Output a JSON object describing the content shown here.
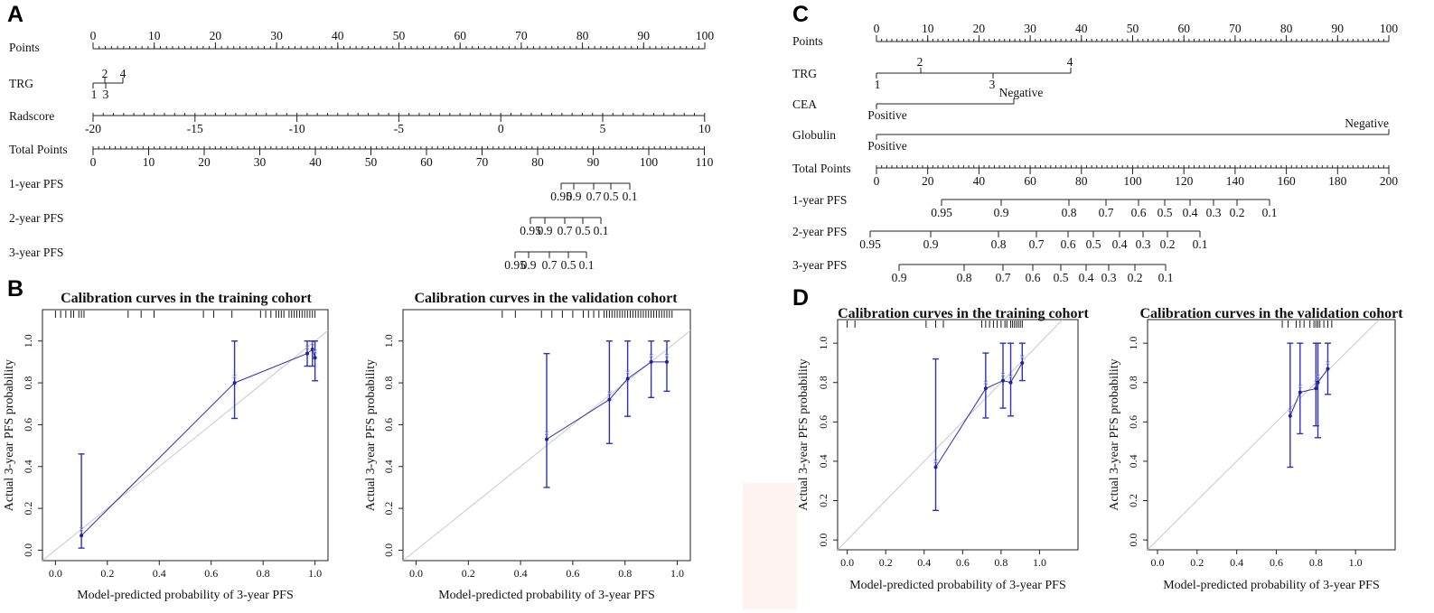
{
  "panels": {
    "A": {
      "letter": "A",
      "rows": [
        {
          "label": "Points",
          "ticks": [
            {
              "label": "0",
              "v": 0
            },
            {
              "label": "10",
              "v": 10
            },
            {
              "label": "20",
              "v": 20
            },
            {
              "label": "30",
              "v": 30
            },
            {
              "label": "40",
              "v": 40
            },
            {
              "label": "50",
              "v": 50
            },
            {
              "label": "60",
              "v": 60
            },
            {
              "label": "70",
              "v": 70
            },
            {
              "label": "80",
              "v": 80
            },
            {
              "label": "90",
              "v": 90
            },
            {
              "label": "100",
              "v": 100
            }
          ]
        },
        {
          "label": "TRG",
          "ticks": [
            {
              "label": "1",
              "v": 1
            },
            {
              "label": "2",
              "v": 2
            },
            {
              "label": "3",
              "v": 3
            },
            {
              "label": "4",
              "v": 4
            }
          ]
        },
        {
          "label": "Radscore",
          "ticks": [
            {
              "label": "-20",
              "v": -20
            },
            {
              "label": "-15",
              "v": -15
            },
            {
              "label": "-10",
              "v": -10
            },
            {
              "label": "-5",
              "v": -5
            },
            {
              "label": "0",
              "v": 0
            },
            {
              "label": "5",
              "v": 5
            },
            {
              "label": "10",
              "v": 10
            }
          ]
        },
        {
          "label": "Total Points",
          "ticks": [
            {
              "label": "0",
              "v": 0
            },
            {
              "label": "10",
              "v": 10
            },
            {
              "label": "20",
              "v": 20
            },
            {
              "label": "30",
              "v": 30
            },
            {
              "label": "40",
              "v": 40
            },
            {
              "label": "50",
              "v": 50
            },
            {
              "label": "60",
              "v": 60
            },
            {
              "label": "70",
              "v": 70
            },
            {
              "label": "80",
              "v": 80
            },
            {
              "label": "90",
              "v": 90
            },
            {
              "label": "100",
              "v": 100
            },
            {
              "label": "110",
              "v": 110
            }
          ]
        },
        {
          "label": "1-year PFS",
          "ticks": [
            {
              "label": "0.95"
            },
            {
              "label": "0.9"
            },
            {
              "label": "0.7"
            },
            {
              "label": "0.5"
            },
            {
              "label": "0.1"
            }
          ]
        },
        {
          "label": "2-year PFS",
          "ticks": [
            {
              "label": "0.95"
            },
            {
              "label": "0.9"
            },
            {
              "label": "0.7"
            },
            {
              "label": "0.5"
            },
            {
              "label": "0.1"
            }
          ]
        },
        {
          "label": "3-year PFS",
          "ticks": [
            {
              "label": "0.95"
            },
            {
              "label": "0.9"
            },
            {
              "label": "0.7"
            },
            {
              "label": "0.5"
            },
            {
              "label": "0.1"
            }
          ]
        }
      ]
    },
    "C": {
      "letter": "C",
      "rows": [
        {
          "label": "Points",
          "ticks": [
            {
              "label": "0",
              "v": 0
            },
            {
              "label": "10",
              "v": 10
            },
            {
              "label": "20",
              "v": 20
            },
            {
              "label": "30",
              "v": 30
            },
            {
              "label": "40",
              "v": 40
            },
            {
              "label": "50",
              "v": 50
            },
            {
              "label": "60",
              "v": 60
            },
            {
              "label": "70",
              "v": 70
            },
            {
              "label": "80",
              "v": 80
            },
            {
              "label": "90",
              "v": 90
            },
            {
              "label": "100",
              "v": 100
            }
          ]
        },
        {
          "label": "TRG",
          "ticks": [
            {
              "label": "1"
            },
            {
              "label": "2"
            },
            {
              "label": "3"
            },
            {
              "label": "4"
            }
          ]
        },
        {
          "label": "CEA",
          "ticks": [
            {
              "label": "Positive"
            },
            {
              "label": "Negative"
            }
          ]
        },
        {
          "label": "Globulin",
          "ticks": [
            {
              "label": "Positive"
            },
            {
              "label": "Negative"
            }
          ]
        },
        {
          "label": "Total Points",
          "ticks": [
            {
              "label": "0",
              "v": 0
            },
            {
              "label": "20",
              "v": 20
            },
            {
              "label": "40",
              "v": 40
            },
            {
              "label": "60",
              "v": 60
            },
            {
              "label": "80",
              "v": 80
            },
            {
              "label": "100",
              "v": 100
            },
            {
              "label": "120",
              "v": 120
            },
            {
              "label": "140",
              "v": 140
            },
            {
              "label": "160",
              "v": 160
            },
            {
              "label": "180",
              "v": 180
            },
            {
              "label": "200",
              "v": 200
            }
          ]
        },
        {
          "label": "1-year PFS",
          "ticks": [
            {
              "label": "0.95"
            },
            {
              "label": "0.9"
            },
            {
              "label": "0.8"
            },
            {
              "label": "0.7"
            },
            {
              "label": "0.6"
            },
            {
              "label": "0.5"
            },
            {
              "label": "0.4"
            },
            {
              "label": "0.3"
            },
            {
              "label": "0.2"
            },
            {
              "label": "0.1"
            }
          ]
        },
        {
          "label": "2-year PFS",
          "ticks": [
            {
              "label": "0.95"
            },
            {
              "label": "0.9"
            },
            {
              "label": "0.8"
            },
            {
              "label": "0.7"
            },
            {
              "label": "0.6"
            },
            {
              "label": "0.5"
            },
            {
              "label": "0.4"
            },
            {
              "label": "0.3"
            },
            {
              "label": "0.2"
            },
            {
              "label": "0.1"
            }
          ]
        },
        {
          "label": "3-year PFS",
          "ticks": [
            {
              "label": "0.9"
            },
            {
              "label": "0.8"
            },
            {
              "label": "0.7"
            },
            {
              "label": "0.6"
            },
            {
              "label": "0.5"
            },
            {
              "label": "0.4"
            },
            {
              "label": "0.3"
            },
            {
              "label": "0.2"
            },
            {
              "label": "0.1"
            }
          ]
        }
      ]
    },
    "B": {
      "letter": "B"
    },
    "D": {
      "letter": "D"
    }
  },
  "chart_data": [
    {
      "type": "scatter",
      "panel": "B",
      "title": "Calibration curves in the training cohort",
      "xlabel": "Model-predicted probability of 3-year PFS",
      "ylabel": "Actual 3-year PFS probability",
      "xlim": [
        -0.05,
        1.05
      ],
      "ylim": [
        -0.05,
        1.15
      ],
      "xticks": [
        "0.0",
        "0.2",
        "0.4",
        "0.6",
        "0.8",
        "1.0"
      ],
      "yticks": [
        "0.0",
        "0.2",
        "0.4",
        "0.6",
        "0.8",
        "1.0"
      ],
      "points": [
        {
          "x": 0.1,
          "y": 0.07,
          "lo": 0.01,
          "hi": 0.46
        },
        {
          "x": 0.69,
          "y": 0.8,
          "lo": 0.63,
          "hi": 1.0
        },
        {
          "x": 0.97,
          "y": 0.94,
          "lo": 0.88,
          "hi": 1.0
        },
        {
          "x": 0.99,
          "y": 0.96,
          "lo": 0.88,
          "hi": 1.0
        },
        {
          "x": 1.0,
          "y": 0.92,
          "lo": 0.81,
          "hi": 1.0
        }
      ],
      "rug": [
        0.0,
        0.02,
        0.04,
        0.06,
        0.07,
        0.09,
        0.1,
        0.11,
        0.28,
        0.33,
        0.38,
        0.57,
        0.61,
        0.68,
        0.79,
        0.81,
        0.83,
        0.85,
        0.86,
        0.87,
        0.88,
        0.9,
        0.91,
        0.92,
        0.93,
        0.94,
        0.95,
        0.96,
        0.97,
        0.98,
        0.99,
        1.0
      ]
    },
    {
      "type": "scatter",
      "panel": "B",
      "title": "Calibration curves in the validation cohort",
      "xlabel": "Model-predicted probability of 3-year PFS",
      "ylabel": "Actual 3-year PFS probability",
      "xlim": [
        -0.05,
        1.05
      ],
      "ylim": [
        -0.05,
        1.15
      ],
      "xticks": [
        "0.0",
        "0.2",
        "0.4",
        "0.6",
        "0.8",
        "1.0"
      ],
      "yticks": [
        "0.0",
        "0.2",
        "0.4",
        "0.6",
        "0.8",
        "1.0"
      ],
      "points": [
        {
          "x": 0.5,
          "y": 0.53,
          "lo": 0.3,
          "hi": 0.94
        },
        {
          "x": 0.74,
          "y": 0.72,
          "lo": 0.51,
          "hi": 1.0
        },
        {
          "x": 0.81,
          "y": 0.82,
          "lo": 0.64,
          "hi": 1.0
        },
        {
          "x": 0.9,
          "y": 0.9,
          "lo": 0.73,
          "hi": 1.0
        },
        {
          "x": 0.96,
          "y": 0.9,
          "lo": 0.76,
          "hi": 1.0
        }
      ],
      "rug": [
        0.33,
        0.38,
        0.48,
        0.52,
        0.56,
        0.6,
        0.64,
        0.66,
        0.68,
        0.7,
        0.72,
        0.73,
        0.74,
        0.75,
        0.76,
        0.77,
        0.78,
        0.79,
        0.8,
        0.81,
        0.82,
        0.83,
        0.84,
        0.85,
        0.86,
        0.87,
        0.88,
        0.89,
        0.9,
        0.91,
        0.92,
        0.93,
        0.94,
        0.95,
        0.96,
        0.97,
        0.98
      ]
    },
    {
      "type": "scatter",
      "panel": "D",
      "title": "Calibration curves in the training cohort",
      "xlabel": "Model-predicted probability of 3-year PFS",
      "ylabel": "Actual 3-year PFS probability",
      "xlim": [
        -0.05,
        1.2
      ],
      "ylim": [
        -0.05,
        1.12
      ],
      "xticks": [
        "0.0",
        "0.2",
        "0.4",
        "0.6",
        "0.8",
        "1.0"
      ],
      "yticks": [
        "0.0",
        "0.2",
        "0.4",
        "0.6",
        "0.8",
        "1.0"
      ],
      "points": [
        {
          "x": 0.46,
          "y": 0.37,
          "lo": 0.15,
          "hi": 0.92
        },
        {
          "x": 0.72,
          "y": 0.77,
          "lo": 0.62,
          "hi": 0.95
        },
        {
          "x": 0.81,
          "y": 0.81,
          "lo": 0.67,
          "hi": 1.0
        },
        {
          "x": 0.85,
          "y": 0.8,
          "lo": 0.63,
          "hi": 1.0
        },
        {
          "x": 0.91,
          "y": 0.9,
          "lo": 0.81,
          "hi": 1.0
        }
      ],
      "rug": [
        0.0,
        0.04,
        0.41,
        0.46,
        0.5,
        0.7,
        0.72,
        0.74,
        0.76,
        0.78,
        0.8,
        0.82,
        0.83,
        0.85,
        0.86,
        0.87,
        0.88,
        0.89,
        0.9,
        0.91
      ]
    },
    {
      "type": "scatter",
      "panel": "D",
      "title": "Calibration curves in the validation cohort",
      "xlabel": "Model-predicted probability of 3-year PFS",
      "ylabel": "Actual 3-year PFS probability",
      "xlim": [
        -0.05,
        1.2
      ],
      "ylim": [
        -0.05,
        1.12
      ],
      "xticks": [
        "0.0",
        "0.2",
        "0.4",
        "0.6",
        "0.8",
        "1.0"
      ],
      "yticks": [
        "0.0",
        "0.2",
        "0.4",
        "0.6",
        "0.8",
        "1.0"
      ],
      "points": [
        {
          "x": 0.67,
          "y": 0.63,
          "lo": 0.37,
          "hi": 1.0
        },
        {
          "x": 0.72,
          "y": 0.75,
          "lo": 0.54,
          "hi": 1.0
        },
        {
          "x": 0.8,
          "y": 0.77,
          "lo": 0.58,
          "hi": 1.0
        },
        {
          "x": 0.81,
          "y": 0.8,
          "lo": 0.52,
          "hi": 1.0
        },
        {
          "x": 0.86,
          "y": 0.87,
          "lo": 0.74,
          "hi": 1.0
        }
      ],
      "rug": [
        0.63,
        0.66,
        0.7,
        0.72,
        0.74,
        0.77,
        0.79,
        0.8,
        0.81,
        0.82,
        0.84,
        0.86,
        0.88
      ]
    }
  ],
  "colors": {
    "line": "#2e31b8",
    "point": "#1f2299",
    "axis": "#222222",
    "ideal": "#c9c9c9",
    "rug": "#000000",
    "boundary_tint": "#fff4f2"
  }
}
